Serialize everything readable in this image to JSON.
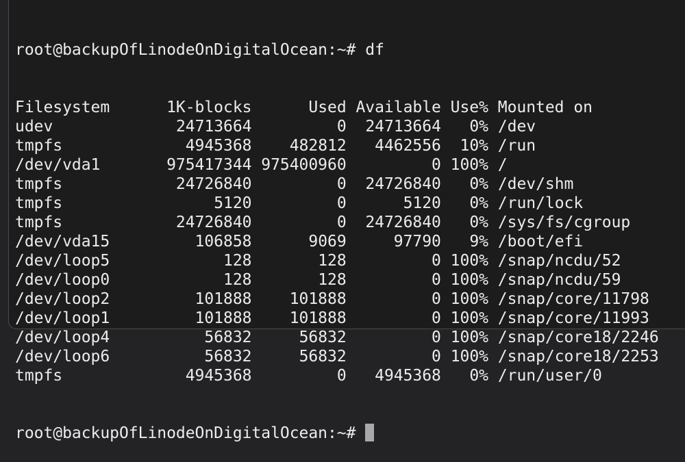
{
  "prompt": "root@backupOfLinodeOnDigitalOcean:~#",
  "command": "df",
  "headers": [
    "Filesystem",
    "1K-blocks",
    "Used",
    "Available",
    "Use%",
    "Mounted on"
  ],
  "rows": [
    [
      "udev",
      "24713664",
      "0",
      "24713664",
      "0%",
      "/dev"
    ],
    [
      "tmpfs",
      "4945368",
      "482812",
      "4462556",
      "10%",
      "/run"
    ],
    [
      "/dev/vda1",
      "975417344",
      "975400960",
      "0",
      "100%",
      "/"
    ],
    [
      "tmpfs",
      "24726840",
      "0",
      "24726840",
      "0%",
      "/dev/shm"
    ],
    [
      "tmpfs",
      "5120",
      "0",
      "5120",
      "0%",
      "/run/lock"
    ],
    [
      "tmpfs",
      "24726840",
      "0",
      "24726840",
      "0%",
      "/sys/fs/cgroup"
    ],
    [
      "/dev/vda15",
      "106858",
      "9069",
      "97790",
      "9%",
      "/boot/efi"
    ],
    [
      "/dev/loop5",
      "128",
      "128",
      "0",
      "100%",
      "/snap/ncdu/52"
    ],
    [
      "/dev/loop0",
      "128",
      "128",
      "0",
      "100%",
      "/snap/ncdu/59"
    ],
    [
      "/dev/loop2",
      "101888",
      "101888",
      "0",
      "100%",
      "/snap/core/11798"
    ],
    [
      "/dev/loop1",
      "101888",
      "101888",
      "0",
      "100%",
      "/snap/core/11993"
    ],
    [
      "/dev/loop4",
      "56832",
      "56832",
      "0",
      "100%",
      "/snap/core18/2246"
    ],
    [
      "/dev/loop6",
      "56832",
      "56832",
      "0",
      "100%",
      "/snap/core18/2253"
    ],
    [
      "tmpfs",
      "4945368",
      "0",
      "4945368",
      "0%",
      "/run/user/0"
    ]
  ],
  "colors": {
    "background": "#1c1c1c",
    "text": "#ececec",
    "cursor": "#a8a8a8"
  }
}
